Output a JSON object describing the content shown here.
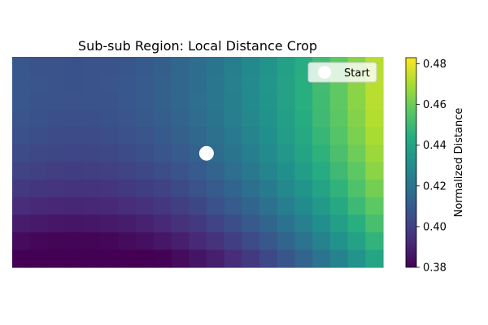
{
  "chart_data": {
    "type": "heatmap",
    "title": "Sub-sub Region: Local Distance Crop",
    "colormap": "viridis",
    "grid": false,
    "axes_visible": false,
    "rows": 12,
    "cols": 21,
    "value_model": {
      "description": "cell value = v0 + ax*col + ay*row + bx*col^2 + by*row^2 (row 0 = top, col 0 = left)",
      "v0": 0.408,
      "ax": -0.0014,
      "ay": 0.0008,
      "bx": 0.00023,
      "by": -0.00033
    },
    "vmin": 0.38,
    "vmax": 0.483,
    "marker": {
      "label": "Start",
      "col": 10.5,
      "row": 5.0,
      "color": "#ffffff"
    },
    "legend": {
      "entries": [
        "Start"
      ],
      "position": "top-right"
    },
    "colorbar": {
      "label": "Normalized Distance",
      "ticks": [
        "0.38",
        "0.40",
        "0.42",
        "0.44",
        "0.46",
        "0.48"
      ],
      "tick_values": [
        0.38,
        0.4,
        0.42,
        0.44,
        0.46,
        0.48
      ]
    }
  }
}
